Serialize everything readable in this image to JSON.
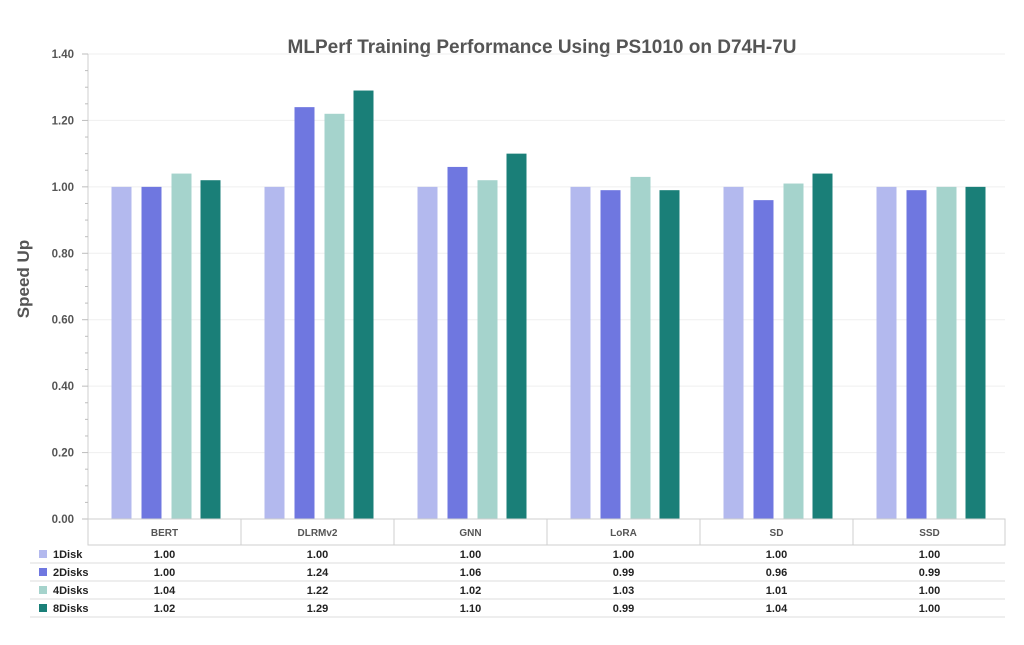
{
  "chart_data": {
    "type": "bar",
    "title": "MLPerf Training Performance Using PS1010 on D74H-7U",
    "xlabel": "",
    "ylabel": "Speed Up",
    "ylim": [
      0,
      1.4
    ],
    "yticks": [
      "0.00",
      "0.20",
      "0.40",
      "0.60",
      "0.80",
      "1.00",
      "1.20",
      "1.40"
    ],
    "categories": [
      "BERT",
      "DLRMv2",
      "GNN",
      "LoRA",
      "SD",
      "SSD"
    ],
    "series": [
      {
        "name": "1Disk",
        "color": "#b3b9ee",
        "values": [
          1.0,
          1.0,
          1.0,
          1.0,
          1.0,
          1.0
        ],
        "labels": [
          "1.00",
          "1.00",
          "1.00",
          "1.00",
          "1.00",
          "1.00"
        ]
      },
      {
        "name": "2Disks",
        "color": "#6f77e0",
        "values": [
          1.0,
          1.24,
          1.06,
          0.99,
          0.96,
          0.99
        ],
        "labels": [
          "1.00",
          "1.24",
          "1.06",
          "0.99",
          "0.96",
          "0.99"
        ]
      },
      {
        "name": "4Disks",
        "color": "#a5d3cc",
        "values": [
          1.04,
          1.22,
          1.02,
          1.03,
          1.01,
          1.0
        ],
        "labels": [
          "1.04",
          "1.22",
          "1.02",
          "1.03",
          "1.01",
          "1.00"
        ]
      },
      {
        "name": "8Disks",
        "color": "#1a7f78",
        "values": [
          1.02,
          1.29,
          1.1,
          0.99,
          1.04,
          1.0
        ],
        "labels": [
          "1.02",
          "1.29",
          "1.10",
          "0.99",
          "1.04",
          "1.00"
        ]
      }
    ],
    "grid": true,
    "legend": "data-table-below"
  }
}
